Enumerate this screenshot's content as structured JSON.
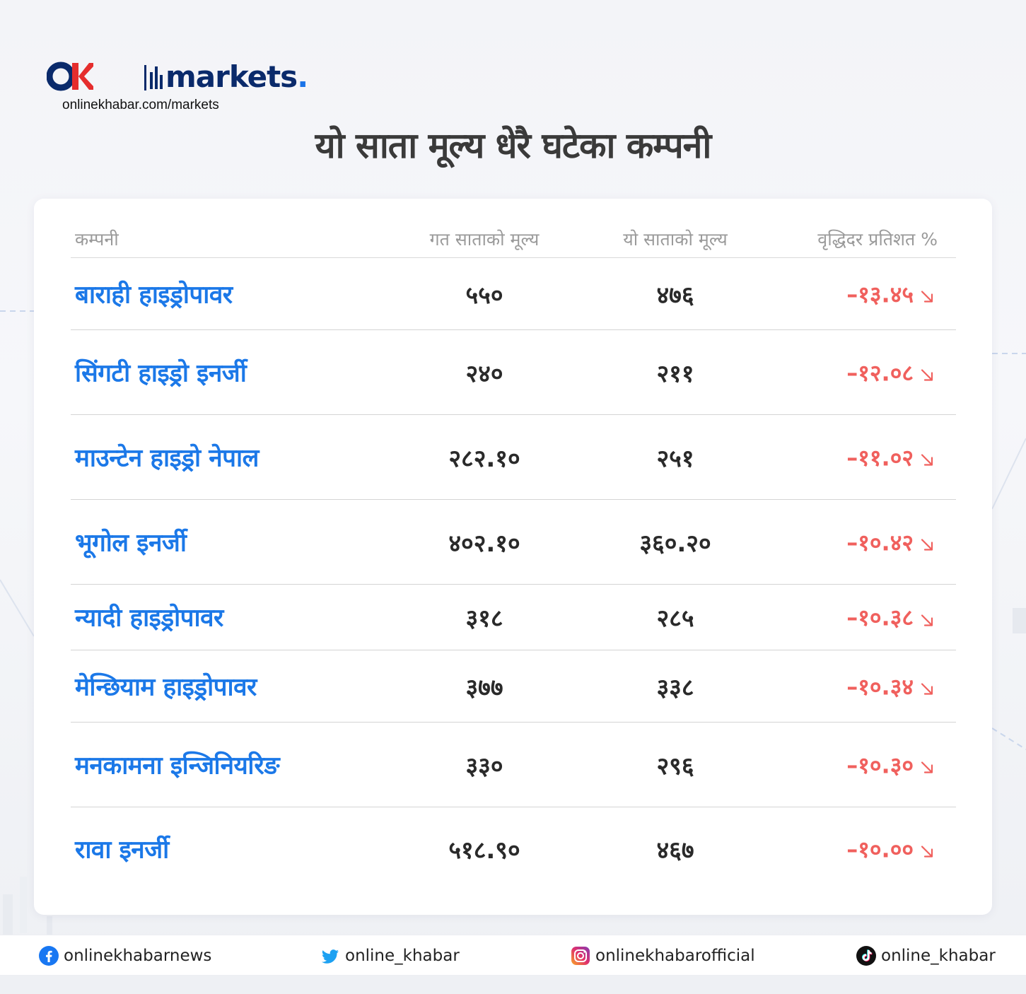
{
  "brand": {
    "logo_word": "markets",
    "logo_dot": ".",
    "url": "onlinekhabar.com/markets"
  },
  "title": "यो साता मूल्य धेरै घटेका कम्पनी",
  "table": {
    "headers": {
      "company": "कम्पनी",
      "last_week": "गत साताको मूल्य",
      "this_week": "यो साताको मूल्य",
      "change": "वृद्धिदर प्रतिशत %"
    },
    "rows": [
      {
        "company": "बाराही हाइड्रोपावर",
        "last_week": "५५०",
        "this_week": "४७६",
        "change": "–१३.४५"
      },
      {
        "company": "सिंगटी हाइड्रो इनर्जी",
        "last_week": "२४०",
        "this_week": "२११",
        "change": "–१२.०८"
      },
      {
        "company": "माउन्टेन हाइड्रो नेपाल",
        "last_week": "२८२.१०",
        "this_week": "२५१",
        "change": "–११.०२"
      },
      {
        "company": "भूगोल इनर्जी",
        "last_week": "४०२.१०",
        "this_week": "३६०.२०",
        "change": "–१०.४२"
      },
      {
        "company": "न्यादी हाइड्रोपावर",
        "last_week": "३१८",
        "this_week": "२८५",
        "change": "–१०.३८"
      },
      {
        "company": "मेन्छियाम हाइड्रोपावर",
        "last_week": "३७७",
        "this_week": "३३८",
        "change": "–१०.३४"
      },
      {
        "company": "मनकामना इन्जिनियरिङ",
        "last_week": "३३०",
        "this_week": "२९६",
        "change": "–१०.३०"
      },
      {
        "company": "रावा इनर्जी",
        "last_week": "५१८.९०",
        "this_week": "४६७",
        "change": "–१०.००"
      }
    ]
  },
  "footer": {
    "facebook": "onlinekhabarnews",
    "twitter": "online_khabar",
    "instagram": "onlinekhabarofficial",
    "tiktok": "online_khabar"
  },
  "colors": {
    "company_name": "#1b78e8",
    "negative_change": "#f0605d",
    "brand_navy": "#0a2a6b",
    "brand_red": "#e52d2d"
  },
  "icons": [
    "facebook-icon",
    "twitter-icon",
    "instagram-icon",
    "tiktok-icon",
    "trend-down-arrow-icon"
  ]
}
